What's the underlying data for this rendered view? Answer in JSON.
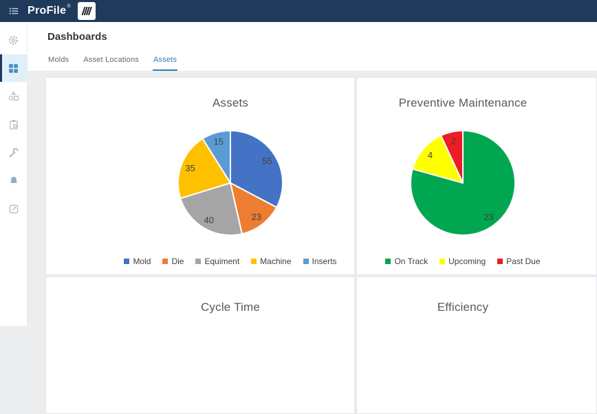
{
  "topbar": {
    "brand": "ProFile",
    "registered": "®",
    "background_color": "#203a5c"
  },
  "sidebar": {
    "icons": [
      {
        "name": "gear-icon",
        "active": false
      },
      {
        "name": "dashboard-grid-icon",
        "active": true
      },
      {
        "name": "shapes-icon",
        "active": false
      },
      {
        "name": "clipboard-icon",
        "active": false
      },
      {
        "name": "wrench-icon",
        "active": false
      },
      {
        "name": "bell-icon",
        "active": false
      },
      {
        "name": "report-icon",
        "active": false
      }
    ],
    "active_icon_color": "#4a8fc0",
    "inactive_icon_color": "#a9b3bb"
  },
  "header": {
    "title": "Dashboards",
    "tabs": [
      {
        "label": "Molds",
        "active": false
      },
      {
        "label": "Asset Locations",
        "active": false
      },
      {
        "label": "Assets",
        "active": true
      }
    ],
    "active_tab_color": "#2e7fb6"
  },
  "chart_data": [
    {
      "type": "pie",
      "title": "Assets",
      "labels": [
        "Mold",
        "Die",
        "Equiment",
        "Machine",
        "Inserts"
      ],
      "values": [
        55,
        23,
        40,
        35,
        15
      ],
      "colors": [
        "#4472c4",
        "#ed7d31",
        "#a5a5a5",
        "#ffc000",
        "#5b9bd5"
      ],
      "legend_position": "bottom",
      "data_labels": true,
      "start_angle_deg": 0,
      "direction": "clockwise"
    },
    {
      "type": "pie",
      "title": "Preventive Maintenance",
      "labels": [
        "On Track",
        "Upcoming",
        "Past Due"
      ],
      "values": [
        23,
        4,
        2
      ],
      "colors": [
        "#00a650",
        "#ffff00",
        "#ee1c25"
      ],
      "legend_position": "bottom",
      "data_labels": true,
      "start_angle_deg": 0,
      "direction": "clockwise"
    },
    {
      "type": "unknown",
      "title": "Cycle Time",
      "values": []
    },
    {
      "type": "unknown",
      "title": "Efficiency",
      "values": []
    }
  ]
}
